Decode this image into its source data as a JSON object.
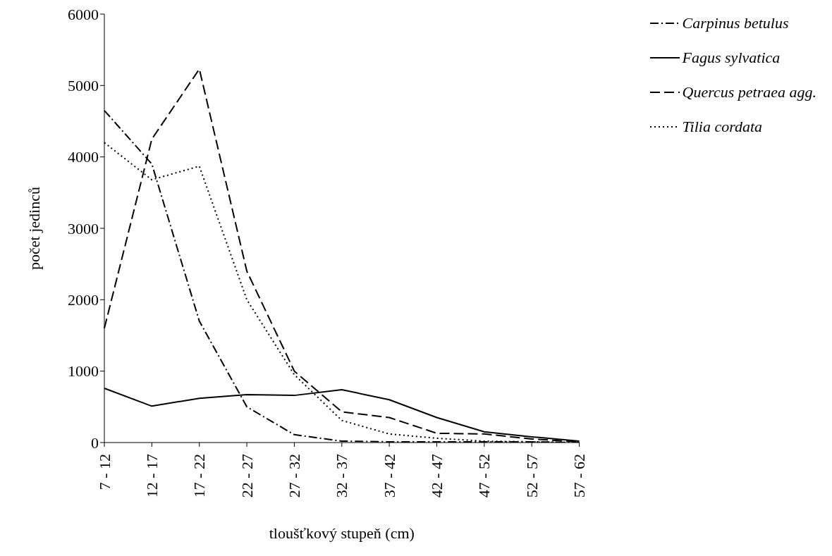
{
  "chart_data": {
    "type": "line",
    "xlabel": "tloušťkový stupeň (cm)",
    "ylabel": "počet jedinců",
    "categories": [
      "7 - 12",
      "12 - 17",
      "17 - 22",
      "22 - 27",
      "27 - 32",
      "32 - 37",
      "37 - 42",
      "42 - 47",
      "47 - 52",
      "52 - 57",
      "57 - 62"
    ],
    "series": [
      {
        "name": "Carpinus betulus",
        "color": "#000000",
        "line_style": "dashdot",
        "values": [
          4650,
          3900,
          1700,
          500,
          110,
          20,
          10,
          10,
          10,
          10,
          0
        ]
      },
      {
        "name": "Fagus sylvatica",
        "color": "#000000",
        "line_style": "solid",
        "values": [
          760,
          510,
          620,
          670,
          660,
          740,
          600,
          350,
          150,
          80,
          20
        ]
      },
      {
        "name": "Quercus petraea agg.",
        "color": "#000000",
        "line_style": "dashed",
        "values": [
          1600,
          4250,
          5230,
          2400,
          1000,
          430,
          350,
          130,
          120,
          50,
          10
        ]
      },
      {
        "name": "Tilia cordata",
        "color": "#000000",
        "line_style": "dotted",
        "values": [
          4200,
          3680,
          3870,
          2000,
          950,
          310,
          120,
          60,
          20,
          10,
          0
        ]
      }
    ],
    "ylim": [
      0,
      6000
    ],
    "yticks": [
      0,
      1000,
      2000,
      3000,
      4000,
      5000,
      6000
    ],
    "grid": false,
    "legend": "top right",
    "marker": "none"
  }
}
